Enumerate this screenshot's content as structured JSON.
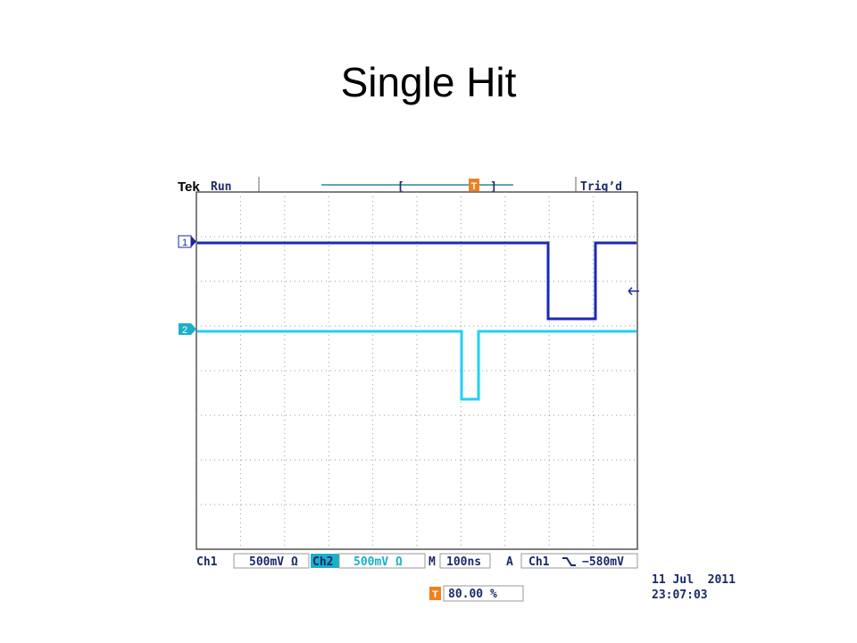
{
  "title": "Single Hit",
  "scope": {
    "brand": "Tek",
    "state": "Run",
    "trigger_status": "Trig’d",
    "trigger_marker": "T",
    "trigger_position_marker": "T",
    "channel_markers": [
      "1",
      "2"
    ],
    "status_bar": {
      "ch1_label": "Ch1",
      "ch1_scale": "500mV Ω",
      "ch2_label": "Ch2",
      "ch2_scale": "500mV Ω",
      "time_label": "M",
      "time_scale": "100ns",
      "trigger_label": "A",
      "trigger_source": "Ch1",
      "trigger_level": "−580mV"
    },
    "date": "11 Jul  2011",
    "time": "23:07:03",
    "trigger_pos_icon": "T",
    "trigger_pos": "80.00 %"
  }
}
